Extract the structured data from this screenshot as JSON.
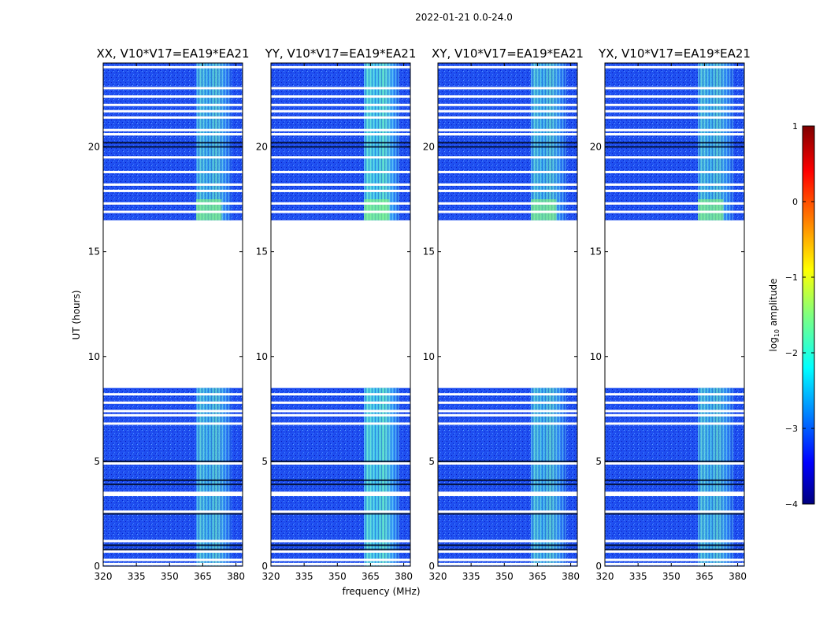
{
  "figure_title": "2022-01-21 0.0-24.0",
  "chart_data": {
    "type": "heatmap",
    "ylabel": "UT (hours)",
    "xlabel": "frequency (MHz)",
    "xlim": [
      320,
      383
    ],
    "ylim": [
      0,
      24
    ],
    "xticks": [
      320,
      335,
      350,
      365,
      380
    ],
    "yticks": [
      0,
      5,
      10,
      15,
      20
    ],
    "panels": [
      {
        "title": "XX, V10*V17=EA19*EA21"
      },
      {
        "title": "YY, V10*V17=EA19*EA21"
      },
      {
        "title": "XY, V10*V17=EA19*EA21"
      },
      {
        "title": "YX, V10*V17=EA19*EA21"
      }
    ],
    "data_blocks_ut": [
      [
        0.0,
        8.5
      ],
      [
        16.5,
        24.0
      ]
    ],
    "gap_ut": [
      8.5,
      16.5
    ],
    "bright_band_mhz": [
      362,
      378
    ],
    "flagged_rows_ut": [
      0.1,
      0.3,
      0.7,
      1.2,
      2.6,
      3.4,
      3.5,
      4.9,
      6.8,
      7.2,
      7.4,
      7.8,
      8.2,
      16.9,
      17.3,
      17.9,
      18.2,
      18.8,
      19.5,
      20.6,
      20.8,
      21.4,
      21.7,
      22.0,
      22.4,
      22.8,
      23.8
    ],
    "dark_rows_ut": [
      0.8,
      1.0,
      2.5,
      3.9,
      4.1,
      5.0,
      20.0,
      20.2
    ],
    "colorbar": {
      "label": "log10 amplitude",
      "label_main": "log",
      "label_sub": "10",
      "label_rest": " amplitude",
      "range": [
        -4,
        1
      ],
      "ticks": [
        {
          "value": -4,
          "label": "−4"
        },
        {
          "value": -3,
          "label": "−3"
        },
        {
          "value": -2,
          "label": "−2"
        },
        {
          "value": -1,
          "label": "−1"
        },
        {
          "value": 0,
          "label": "0"
        },
        {
          "value": 1,
          "label": "1"
        }
      ],
      "colormap": "jet"
    }
  }
}
